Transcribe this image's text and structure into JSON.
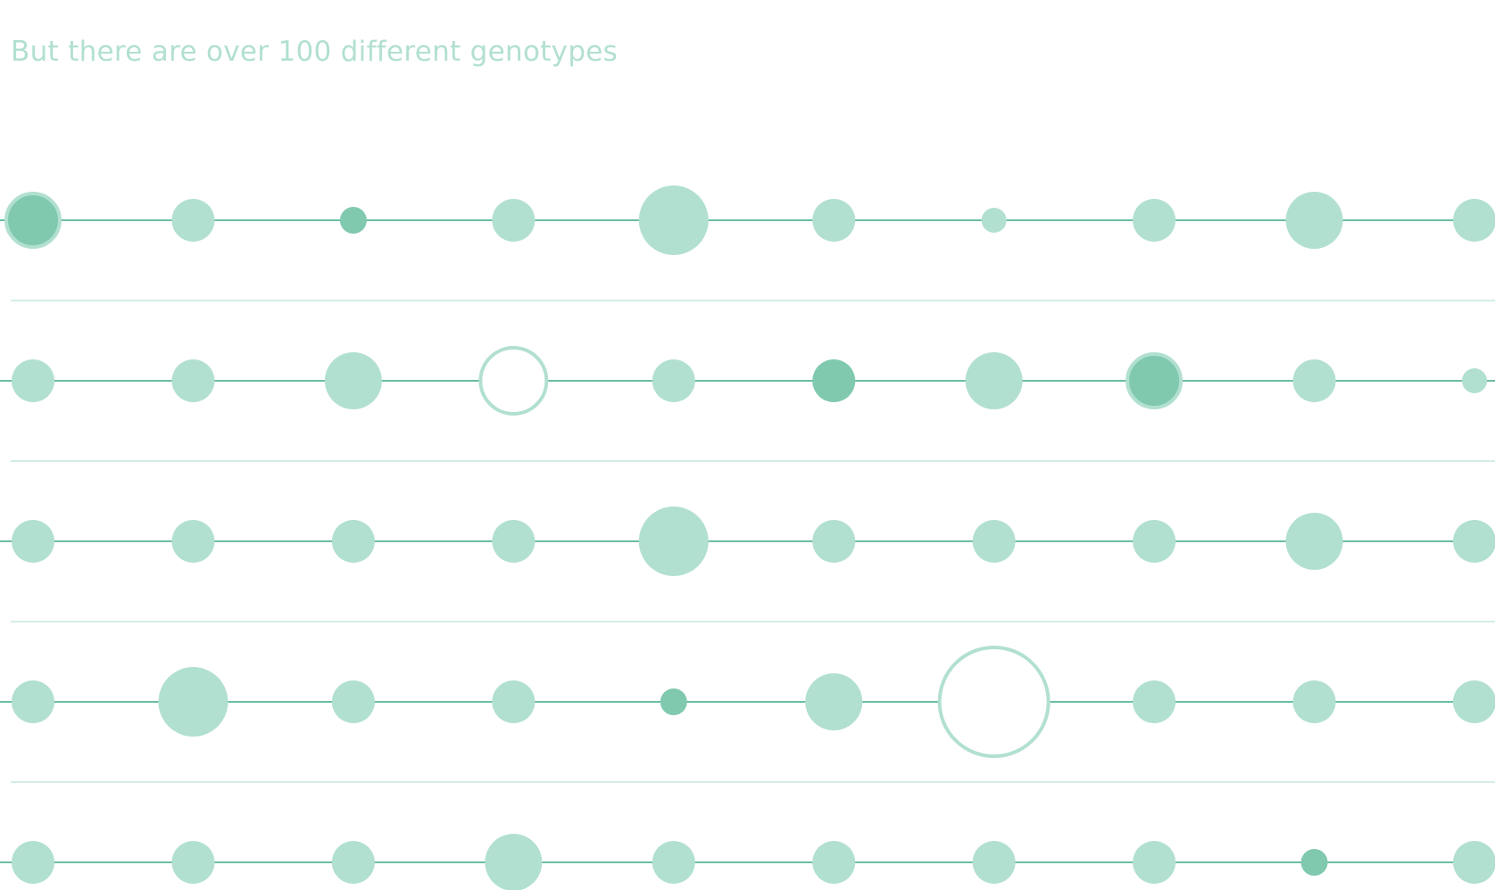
{
  "title": "But there are over 100 different genotypes",
  "colors": {
    "background": "#ffffff",
    "title": "#b2e0d0",
    "circle_light": "#b2e0d0",
    "circle_dark": "#80c9ae",
    "ring": "#b2e0d0",
    "line": "#3aa783",
    "separator": "#c6e8dc"
  },
  "genotype_rows": [
    {
      "nodes": [
        {
          "size": "large",
          "style": "dark-ringed"
        },
        {
          "size": "medium",
          "style": "light"
        },
        {
          "size": "small",
          "style": "dark"
        },
        {
          "size": "medium",
          "style": "light"
        },
        {
          "size": "xlarge",
          "style": "light"
        },
        {
          "size": "medium",
          "style": "light"
        },
        {
          "size": "xsmall",
          "style": "light"
        },
        {
          "size": "medium",
          "style": "light"
        },
        {
          "size": "large",
          "style": "light"
        },
        {
          "size": "medium",
          "style": "light"
        }
      ]
    },
    {
      "nodes": [
        {
          "size": "medium",
          "style": "light"
        },
        {
          "size": "medium",
          "style": "light"
        },
        {
          "size": "large",
          "style": "light"
        },
        {
          "size": "xlarge",
          "style": "hollow"
        },
        {
          "size": "medium",
          "style": "light"
        },
        {
          "size": "medium",
          "style": "dark"
        },
        {
          "size": "large",
          "style": "light"
        },
        {
          "size": "large",
          "style": "dark-ringed"
        },
        {
          "size": "medium",
          "style": "light"
        },
        {
          "size": "xsmall",
          "style": "light"
        }
      ]
    },
    {
      "nodes": [
        {
          "size": "medium",
          "style": "light"
        },
        {
          "size": "medium",
          "style": "light"
        },
        {
          "size": "medium",
          "style": "light"
        },
        {
          "size": "medium",
          "style": "light"
        },
        {
          "size": "xlarge",
          "style": "light"
        },
        {
          "size": "medium",
          "style": "light"
        },
        {
          "size": "medium",
          "style": "light"
        },
        {
          "size": "medium",
          "style": "light"
        },
        {
          "size": "large",
          "style": "light"
        },
        {
          "size": "medium",
          "style": "light"
        }
      ]
    },
    {
      "nodes": [
        {
          "size": "medium",
          "style": "light"
        },
        {
          "size": "xlarge",
          "style": "light"
        },
        {
          "size": "medium",
          "style": "light"
        },
        {
          "size": "medium",
          "style": "light"
        },
        {
          "size": "small",
          "style": "dark"
        },
        {
          "size": "large",
          "style": "light"
        },
        {
          "size": "xxlarge",
          "style": "hollow"
        },
        {
          "size": "medium",
          "style": "light"
        },
        {
          "size": "medium",
          "style": "light"
        },
        {
          "size": "medium",
          "style": "light"
        }
      ]
    },
    {
      "nodes": [
        {
          "size": "medium",
          "style": "light"
        },
        {
          "size": "medium",
          "style": "light"
        },
        {
          "size": "medium",
          "style": "light"
        },
        {
          "size": "large",
          "style": "light"
        },
        {
          "size": "medium",
          "style": "light"
        },
        {
          "size": "medium",
          "style": "light"
        },
        {
          "size": "medium",
          "style": "light"
        },
        {
          "size": "medium",
          "style": "light"
        },
        {
          "size": "small",
          "style": "dark"
        },
        {
          "size": "medium",
          "style": "light"
        }
      ]
    }
  ]
}
